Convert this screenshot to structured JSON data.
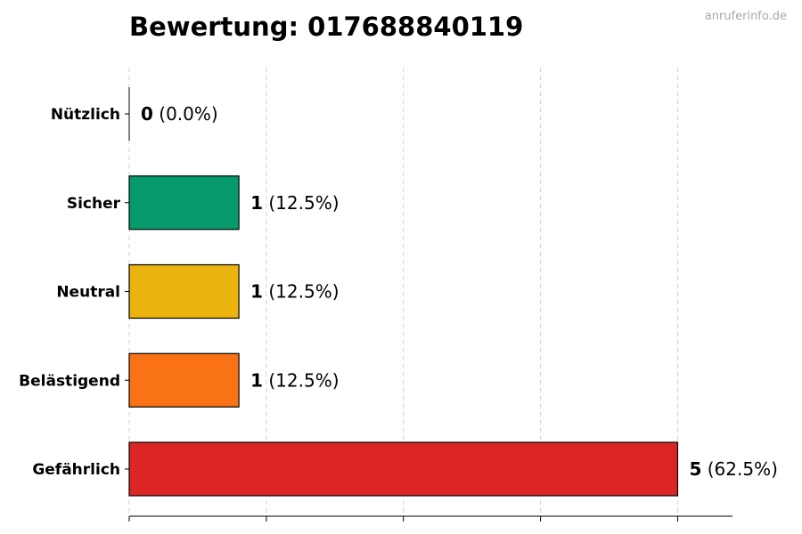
{
  "watermark": "anruferinfo.de",
  "chart_data": {
    "type": "bar",
    "orientation": "horizontal",
    "title": "Bewertung: 017688840119",
    "categories": [
      "Nützlich",
      "Sicher",
      "Neutral",
      "Belästigend",
      "Gefährlich"
    ],
    "values": [
      0,
      1,
      1,
      1,
      5
    ],
    "percentages": [
      "(0.0%)",
      "(12.5%)",
      "(12.5%)",
      "(12.5%)",
      "(62.5%)"
    ],
    "colors": [
      "#1f5fbf",
      "#06996b",
      "#ebb30e",
      "#f97316",
      "#dc2626"
    ],
    "xlim": [
      0,
      5.5
    ],
    "x_ticks": [
      0,
      1.25,
      2.5,
      3.75,
      5
    ],
    "grid": "vertical-dashed",
    "xlabel": "",
    "ylabel": ""
  }
}
